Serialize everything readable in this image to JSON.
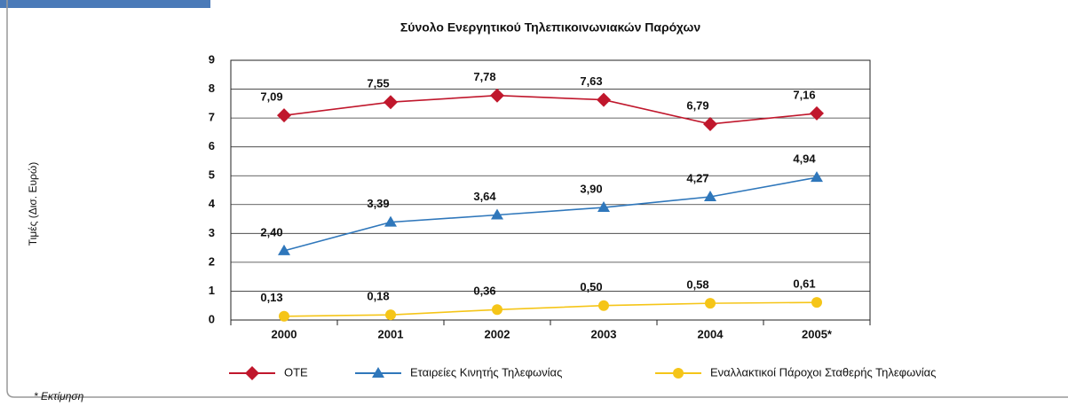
{
  "chart_data": {
    "type": "line",
    "title": "Σύνολο Ενεργητικού Τηλεπικοινωνιακών Παρόχων",
    "y_label": "Τιμές (Δισ. Ευρώ)",
    "footnote": "* Εκτίμηση",
    "categories": [
      "2000",
      "2001",
      "2002",
      "2003",
      "2004",
      "2005*"
    ],
    "series": [
      {
        "name": "ΟΤΕ",
        "color": "#c0172c",
        "marker": "diamond",
        "values": [
          7.09,
          7.55,
          7.78,
          7.63,
          6.79,
          7.16
        ],
        "value_labels": [
          "7,09",
          "7,55",
          "7,78",
          "7,63",
          "6,79",
          "7,16"
        ]
      },
      {
        "name": "Εταιρείες Κινητής Τηλεφωνίας",
        "color": "#2f77bb",
        "marker": "triangle",
        "values": [
          2.4,
          3.39,
          3.64,
          3.9,
          4.27,
          4.94
        ],
        "value_labels": [
          "2,40",
          "3,39",
          "3,64",
          "3,90",
          "4,27",
          "4,94"
        ]
      },
      {
        "name": "Εναλλακτικοί Πάροχοι Σταθερής Τηλεφωνίας",
        "color": "#f5c518",
        "marker": "circle",
        "values": [
          0.13,
          0.18,
          0.36,
          0.5,
          0.58,
          0.61
        ],
        "value_labels": [
          "0,13",
          "0,18",
          "0,36",
          "0,50",
          "0,58",
          "0,61"
        ]
      }
    ],
    "ylim": [
      0,
      9
    ],
    "yticks": [
      0,
      1,
      2,
      3,
      4,
      5,
      6,
      7,
      8,
      9
    ],
    "grid": true
  }
}
